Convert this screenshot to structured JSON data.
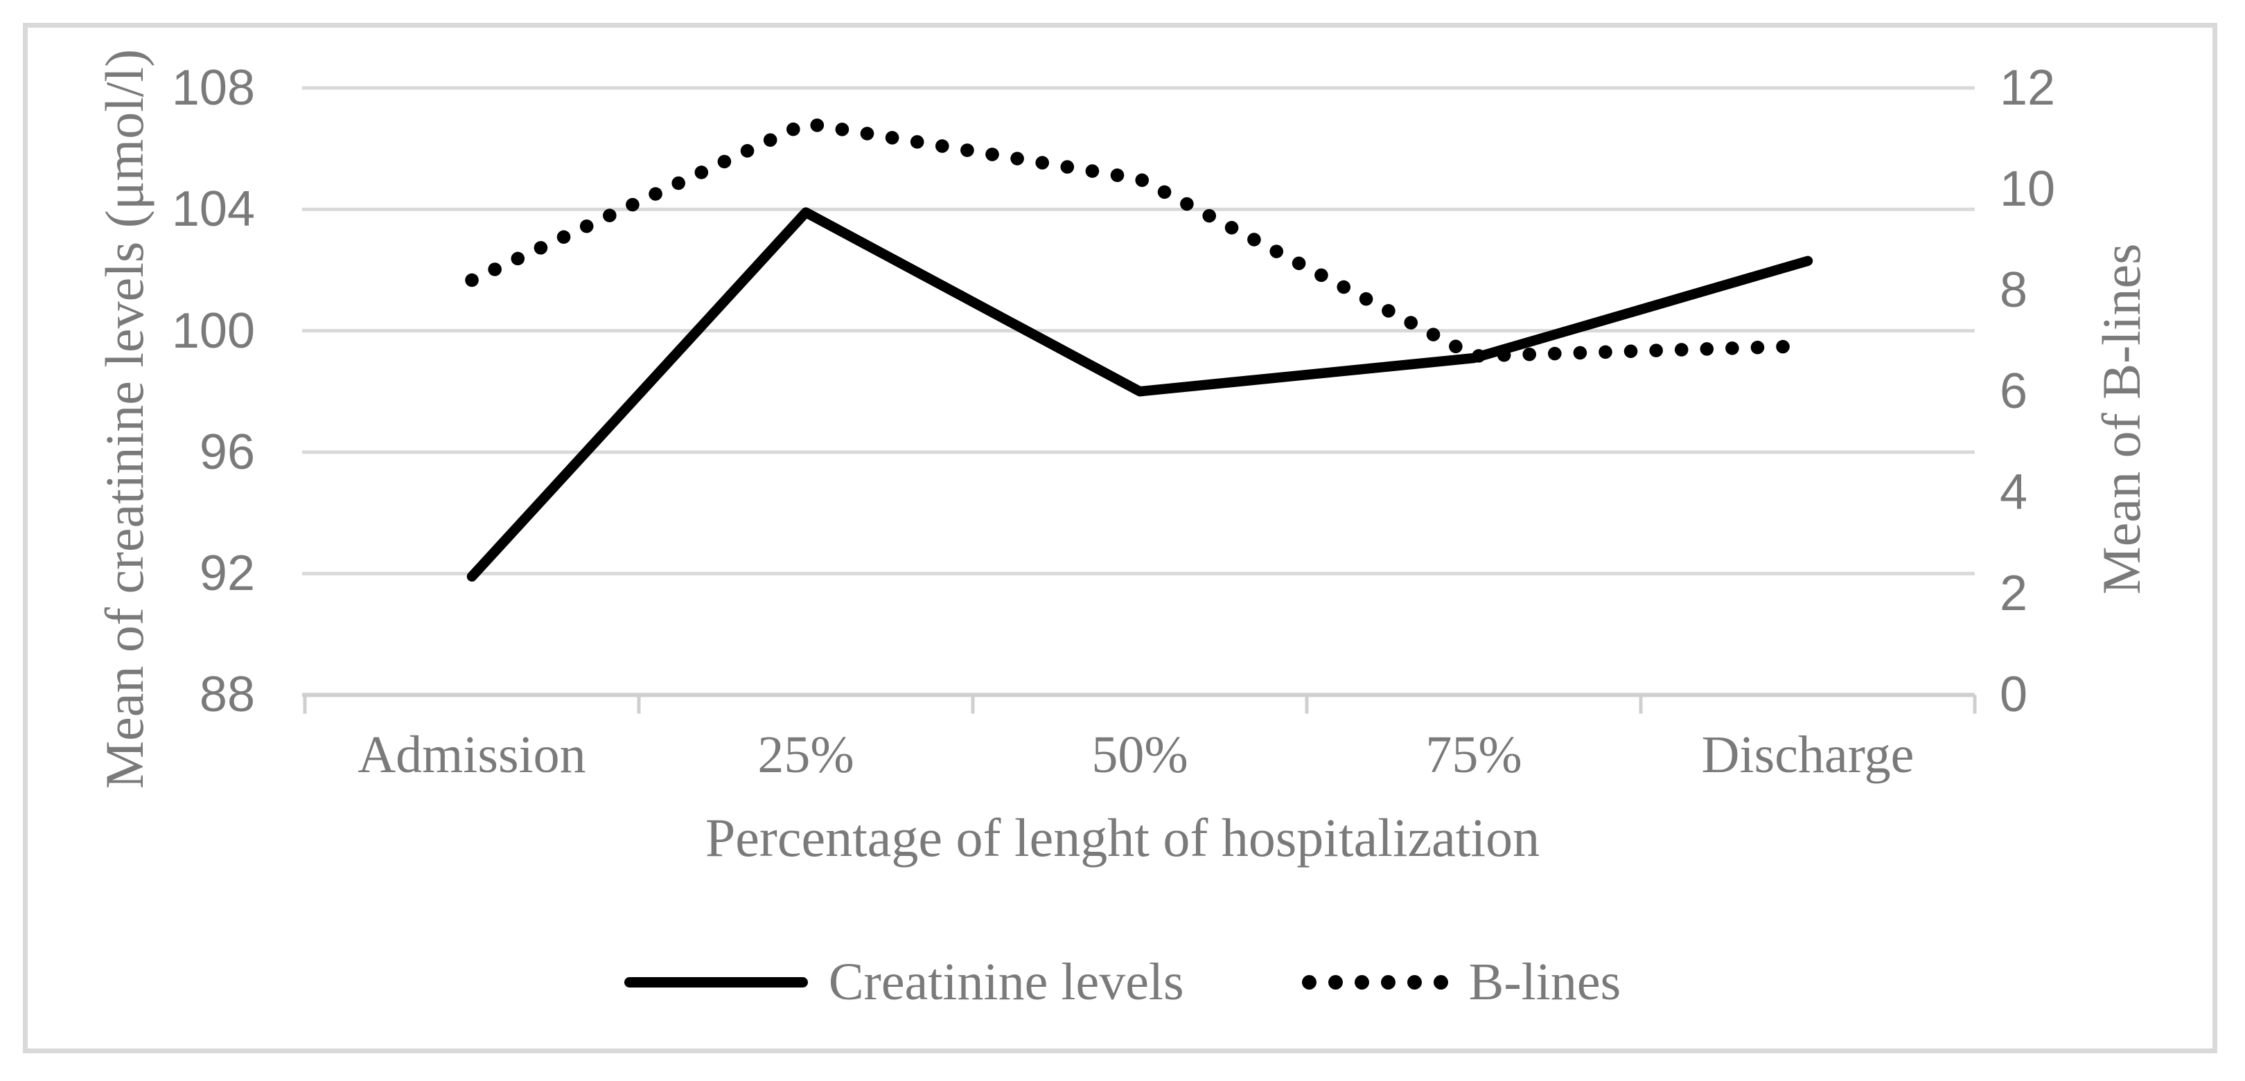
{
  "figure": {
    "background": "#ffffff",
    "border_color": "#d9d9d9"
  },
  "colors": {
    "gridline": "#d9d9d9",
    "axis_line": "#cfcfcf",
    "text": "#7a7a7a",
    "series": "#000000"
  },
  "chart_data": {
    "type": "line",
    "categories": [
      "Admission",
      "25%",
      "50%",
      "75%",
      "Discharge"
    ],
    "series": [
      {
        "name": "Creatinine levels",
        "axis": "left",
        "style": "solid",
        "color": "#000000",
        "values": [
          91.9,
          103.9,
          98.0,
          99.1,
          102.3
        ]
      },
      {
        "name": "B-lines",
        "axis": "right",
        "style": "dotted",
        "color": "#000000",
        "values": [
          8.2,
          11.3,
          10.2,
          6.7,
          6.9
        ]
      }
    ],
    "xlabel": "Percentage of lenght of hospitalization",
    "y_left": {
      "label": "Mean of creatinine levels (μmol/l)",
      "min": 88,
      "max": 108,
      "ticks": [
        "108",
        "104",
        "100",
        "96",
        "92",
        "88"
      ]
    },
    "y_right": {
      "label": "Mean of B-lines",
      "min": 0,
      "max": 12,
      "ticks": [
        "12",
        "10",
        "8",
        "6",
        "4",
        "2",
        "0"
      ]
    },
    "grid": "horizontal-major",
    "legend_position": "bottom"
  }
}
